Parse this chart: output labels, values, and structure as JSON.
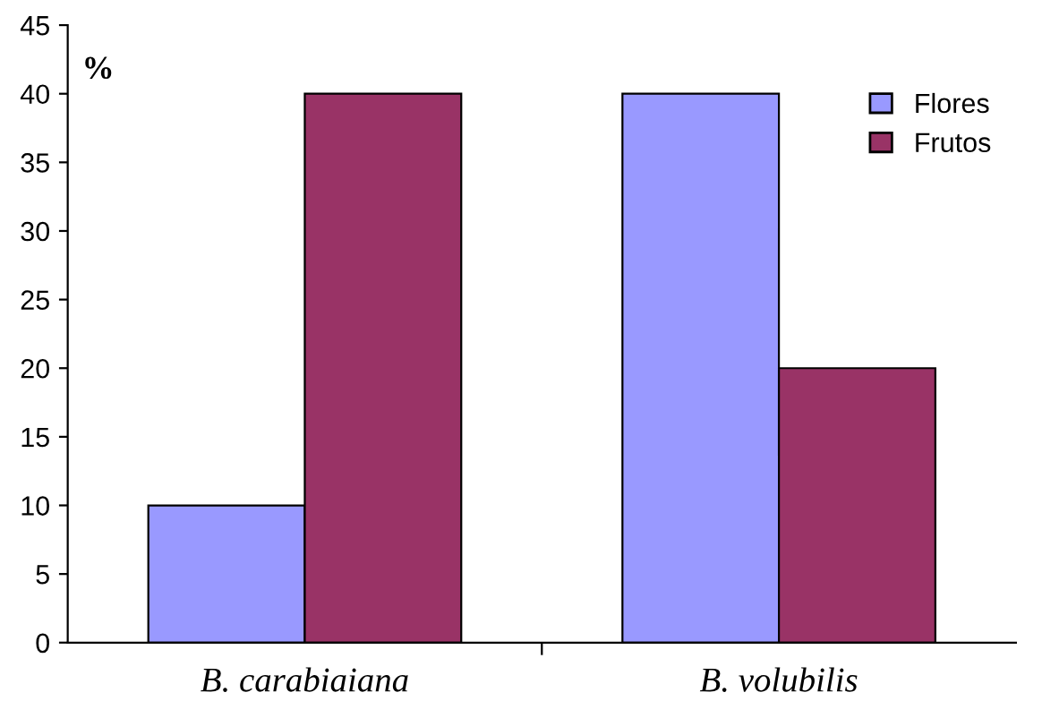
{
  "chart_data": {
    "type": "bar",
    "ylabel": "%",
    "categories": [
      "B. carabiaiana",
      "B. volubilis"
    ],
    "series": [
      {
        "name": "Flores",
        "color": "#9999ff",
        "values": [
          10,
          40
        ]
      },
      {
        "name": "Frutos",
        "color": "#993366",
        "values": [
          40,
          20
        ]
      }
    ],
    "ylim": [
      0,
      45
    ],
    "yticks": [
      0,
      5,
      10,
      15,
      20,
      25,
      30,
      35,
      40,
      45
    ],
    "grid": false,
    "legend": "top right"
  }
}
